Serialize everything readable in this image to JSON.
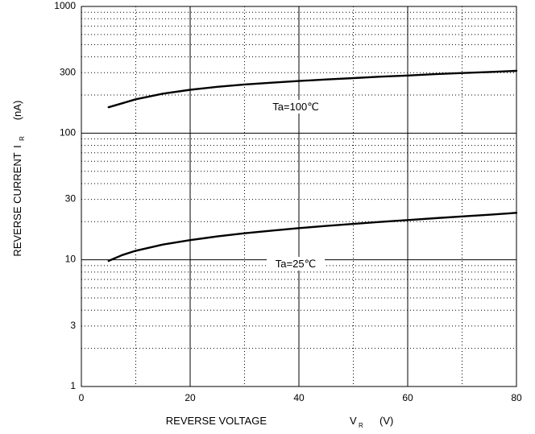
{
  "chart_data": {
    "type": "line",
    "title": "",
    "xlabel": {
      "main": "REVERSE VOLTAGE",
      "symbol": "V",
      "subscript": "R",
      "unit": "(V)"
    },
    "ylabel": {
      "main": "REVERSE CURRENT",
      "symbol": "I",
      "subscript": "R",
      "unit": "(nA)"
    },
    "xlim": [
      0,
      80
    ],
    "ylim": [
      1,
      1000
    ],
    "yscale": "log",
    "grid": true,
    "x_ticks": [
      "0",
      "20",
      "40",
      "60",
      "80"
    ],
    "y_ticks": [
      "1",
      "3",
      "10",
      "30",
      "100",
      "300",
      "1000"
    ],
    "series": [
      {
        "name": "Ta=100℃",
        "x": [
          5,
          7.5,
          10,
          15,
          20,
          25,
          30,
          35,
          40,
          45,
          50,
          55,
          60,
          65,
          70,
          75,
          80
        ],
        "y": [
          160,
          172,
          185,
          205,
          220,
          232,
          242,
          250,
          258,
          265,
          272,
          279,
          285,
          292,
          298,
          304,
          310
        ]
      },
      {
        "name": "Ta=25℃",
        "x": [
          5,
          7.5,
          10,
          15,
          20,
          25,
          30,
          35,
          40,
          45,
          50,
          55,
          60,
          65,
          70,
          75,
          80
        ],
        "y": [
          9.8,
          10.9,
          11.8,
          13.2,
          14.3,
          15.3,
          16.2,
          17.0,
          17.8,
          18.5,
          19.2,
          19.9,
          20.6,
          21.3,
          22.0,
          22.7,
          23.5
        ]
      }
    ]
  }
}
